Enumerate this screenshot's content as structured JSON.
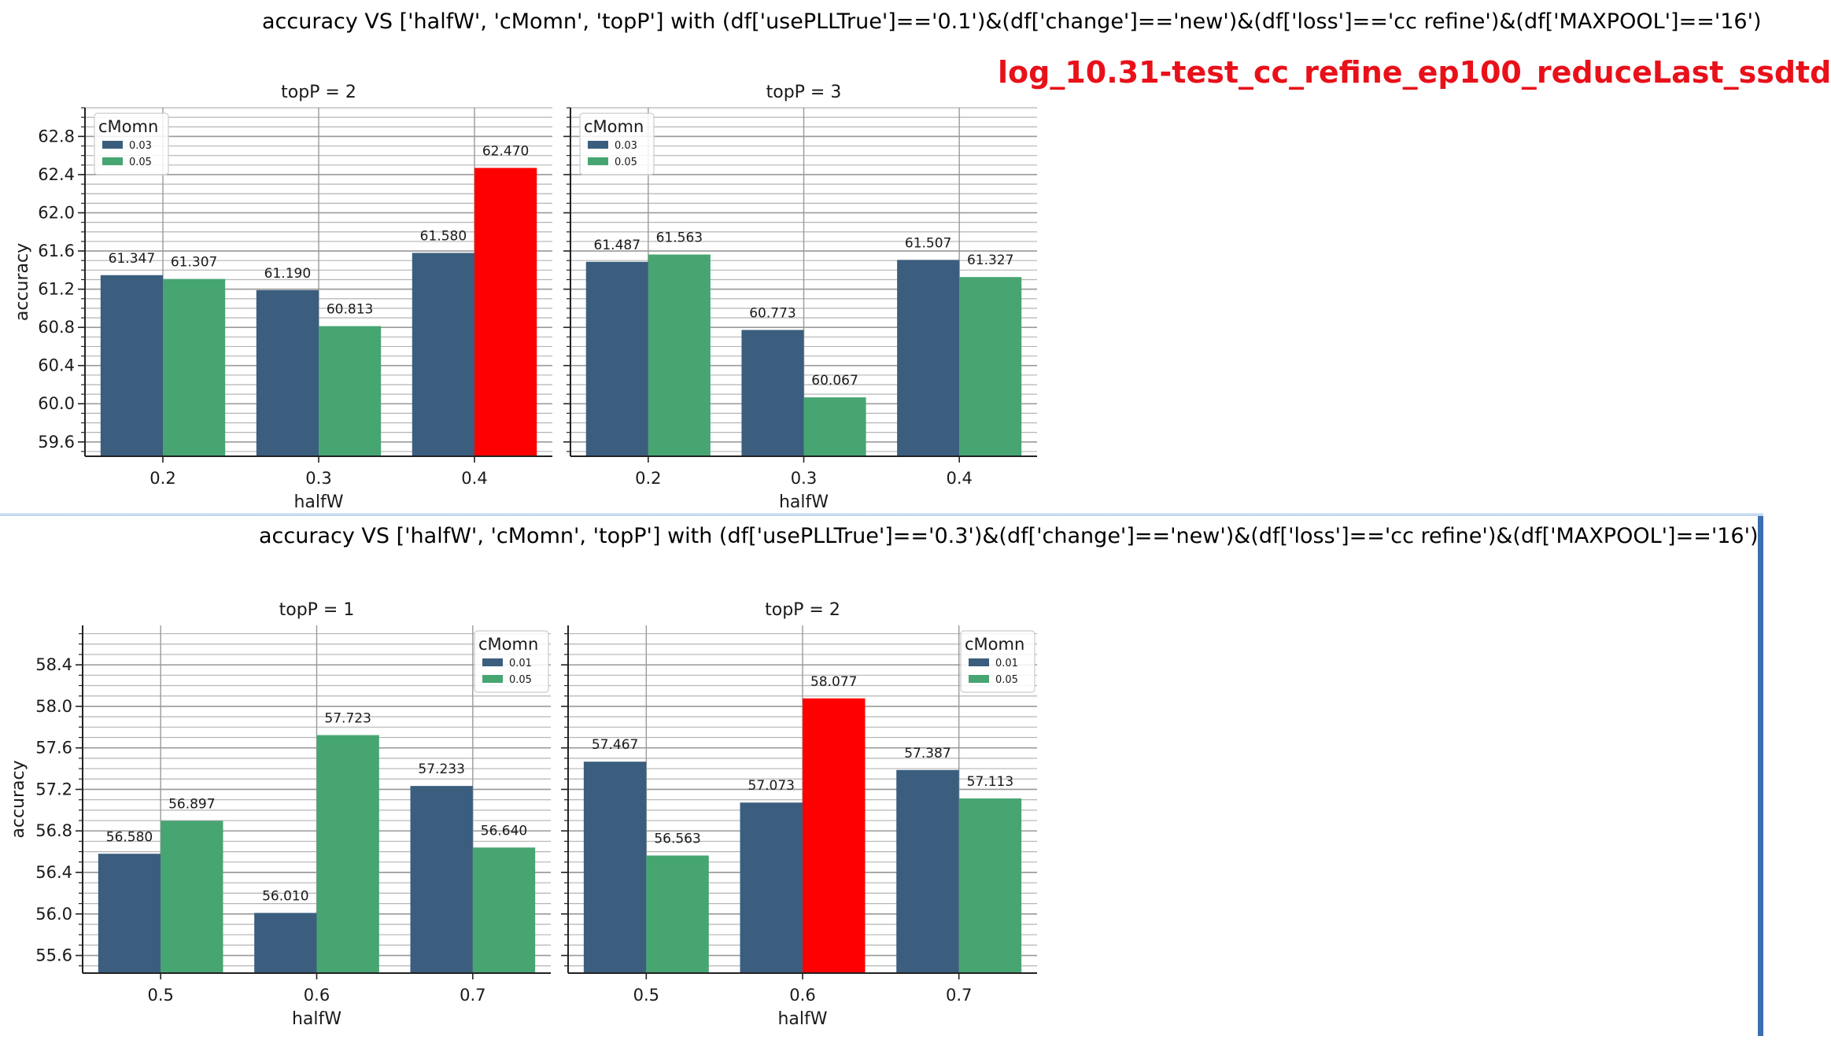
{
  "chart_data": [
    {
      "type": "bar",
      "suptitle": "accuracy VS ['halfW', 'cMomn', 'topP'] with (df['usePLLTrue']=='0.1')&(df['change']=='new')&(df['loss']=='cc refine')&(df['MAXPOOL']=='16')",
      "annotation": "log_10.31-test_cc_refine_ep100_reduceLast_ssdtd",
      "ylabel": "accuracy",
      "xlabel": "halfW",
      "ylim": [
        59.45,
        63.1
      ],
      "yticks": [
        "59.6",
        "60.0",
        "60.4",
        "60.8",
        "61.2",
        "61.6",
        "62.0",
        "62.4",
        "62.8"
      ],
      "yminor_step": 0.1,
      "grid": true,
      "legend_title": "cMomn",
      "legend_position": "upper left",
      "series_names": [
        "0.03",
        "0.05"
      ],
      "panels": [
        {
          "title": "topP = 2",
          "categories": [
            "0.2",
            "0.3",
            "0.4"
          ],
          "series": [
            {
              "name": "0.03",
              "values": [
                61.347,
                61.19,
                61.58
              ],
              "labels": [
                "61.347",
                "61.190",
                "61.580"
              ]
            },
            {
              "name": "0.05",
              "values": [
                61.307,
                60.813,
                62.47
              ],
              "labels": [
                "61.307",
                "60.813",
                "62.470"
              ]
            }
          ],
          "highlight": {
            "series": 1,
            "index": 2
          }
        },
        {
          "title": "topP = 3",
          "categories": [
            "0.2",
            "0.3",
            "0.4"
          ],
          "series": [
            {
              "name": "0.03",
              "values": [
                61.487,
                60.773,
                61.507
              ],
              "labels": [
                "61.487",
                "60.773",
                "61.507"
              ]
            },
            {
              "name": "0.05",
              "values": [
                61.563,
                60.067,
                61.327
              ],
              "labels": [
                "61.563",
                "60.067",
                "61.327"
              ]
            }
          ]
        }
      ]
    },
    {
      "type": "bar",
      "suptitle": "accuracy VS ['halfW', 'cMomn', 'topP'] with (df['usePLLTrue']=='0.3')&(df['change']=='new')&(df['loss']=='cc refine')&(df['MAXPOOL']=='16')",
      "ylabel": "accuracy",
      "xlabel": "halfW",
      "ylim": [
        55.43,
        58.78
      ],
      "yticks": [
        "55.6",
        "56.0",
        "56.4",
        "56.8",
        "57.2",
        "57.6",
        "58.0",
        "58.4"
      ],
      "yminor_step": 0.1,
      "grid": true,
      "legend_title": "cMomn",
      "legend_position": "upper right",
      "series_names": [
        "0.01",
        "0.05"
      ],
      "panels": [
        {
          "title": "topP = 1",
          "categories": [
            "0.5",
            "0.6",
            "0.7"
          ],
          "series": [
            {
              "name": "0.01",
              "values": [
                56.58,
                56.01,
                57.233
              ],
              "labels": [
                "56.580",
                "56.010",
                "57.233"
              ]
            },
            {
              "name": "0.05",
              "values": [
                56.897,
                57.723,
                56.64
              ],
              "labels": [
                "56.897",
                "57.723",
                "56.640"
              ]
            }
          ]
        },
        {
          "title": "topP = 2",
          "categories": [
            "0.5",
            "0.6",
            "0.7"
          ],
          "series": [
            {
              "name": "0.01",
              "values": [
                57.467,
                57.073,
                57.387
              ],
              "labels": [
                "57.467",
                "57.073",
                "57.387"
              ]
            },
            {
              "name": "0.05",
              "values": [
                56.563,
                58.077,
                57.113
              ],
              "labels": [
                "56.563",
                "58.077",
                "57.113"
              ]
            }
          ],
          "highlight": {
            "series": 1,
            "index": 1
          }
        }
      ]
    }
  ],
  "colors": {
    "series0": "#3b5e7e",
    "series1": "#47a572",
    "highlight": "#ff0000",
    "annotation": "#e8111a"
  }
}
